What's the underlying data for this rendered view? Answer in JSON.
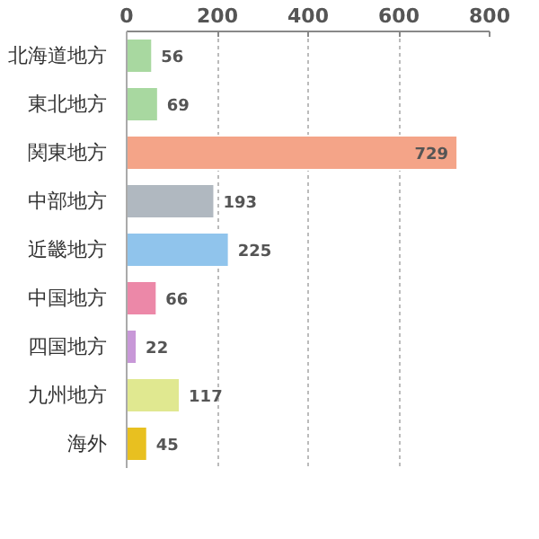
{
  "chart_data": {
    "type": "bar",
    "orientation": "horizontal",
    "categories": [
      "北海道地方",
      "東北地方",
      "関東地方",
      "中部地方",
      "近畿地方",
      "中国地方",
      "四国地方",
      "九州地方",
      "海外"
    ],
    "values": [
      56,
      69,
      729,
      193,
      225,
      66,
      22,
      117,
      45
    ],
    "colors": [
      "#a8d8a0",
      "#a8d8a0",
      "#f4a488",
      "#b0b8c0",
      "#90c4ec",
      "#ec88a8",
      "#c898d8",
      "#e0e890",
      "#e8c020"
    ],
    "xlim": [
      0,
      800
    ],
    "xticks": [
      0,
      200,
      400,
      600,
      800
    ],
    "grid": "x",
    "data_labels": true
  }
}
